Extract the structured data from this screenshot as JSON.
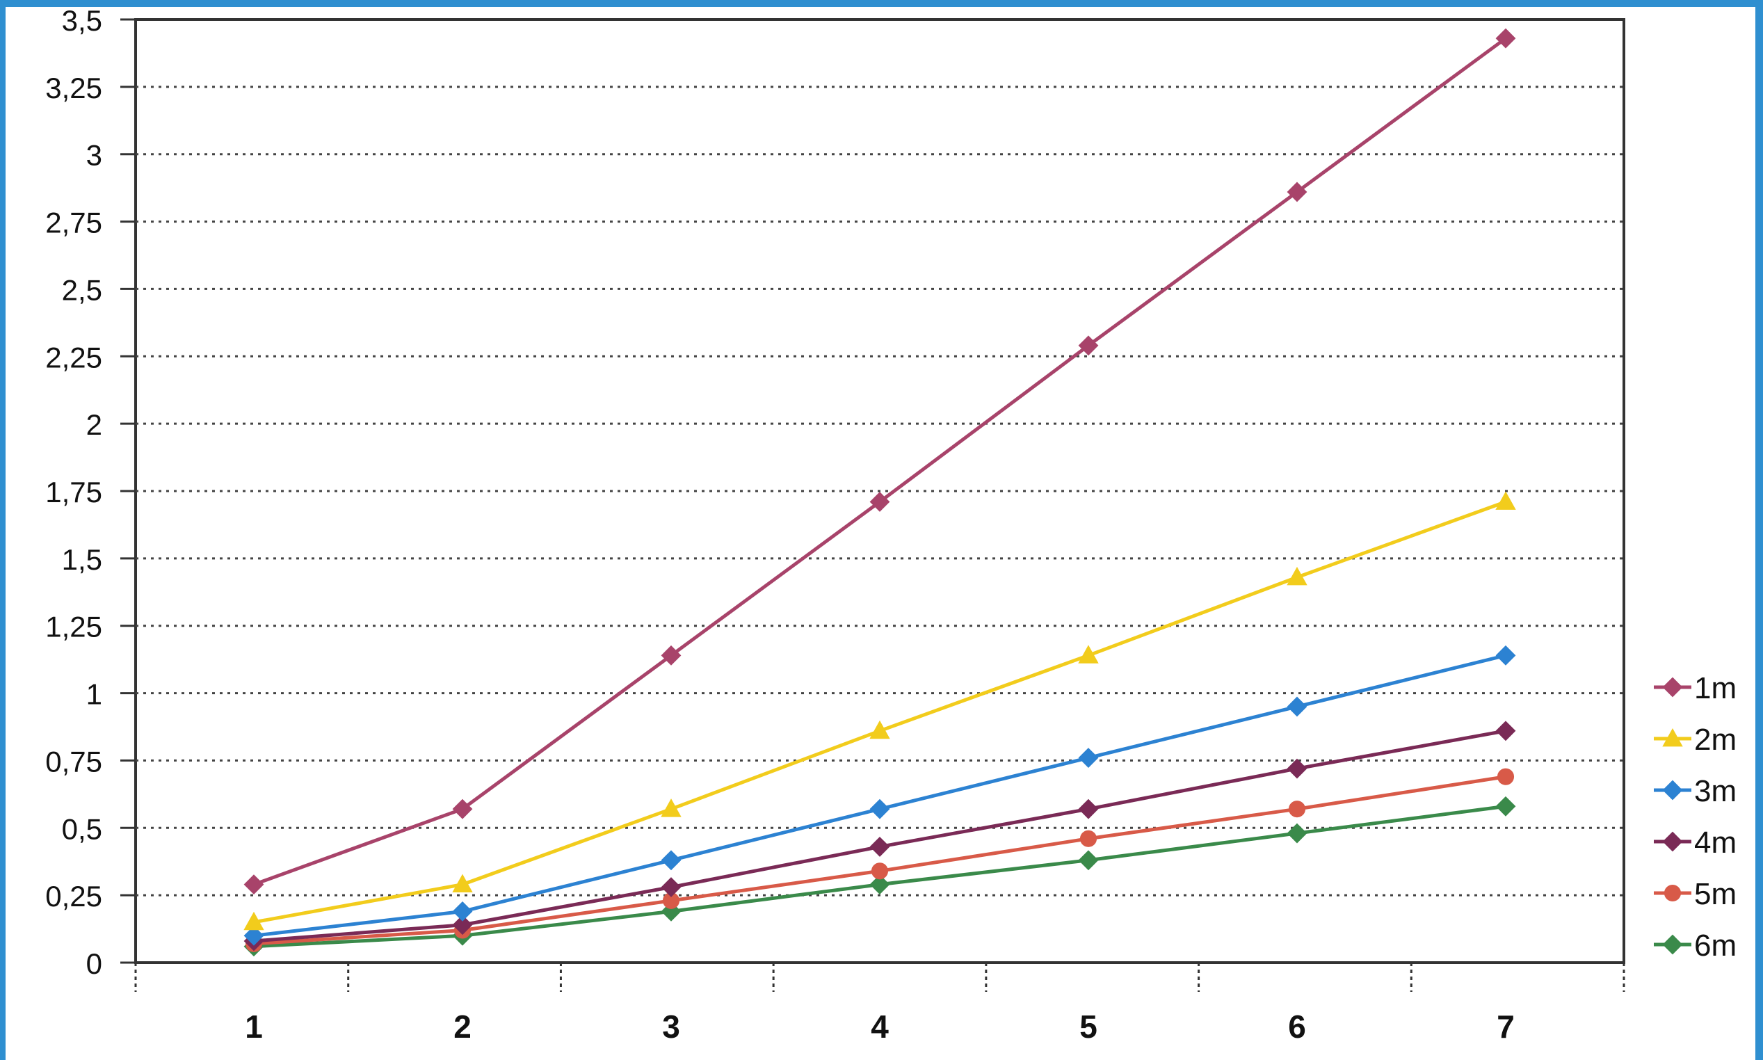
{
  "chart_data": {
    "type": "line",
    "title": "",
    "xlabel": "",
    "ylabel": "",
    "x": [
      1,
      2,
      3,
      4,
      5,
      6,
      7
    ],
    "xticks": [
      "1",
      "2",
      "3",
      "4",
      "5",
      "6",
      "7"
    ],
    "ylim": [
      0,
      3.5
    ],
    "yticks": [
      "0",
      "0,25",
      "0,5",
      "0,75",
      "1",
      "1,25",
      "1,5",
      "1,75",
      "2",
      "2,25",
      "2,5",
      "2,75",
      "3",
      "3,25",
      "3,5"
    ],
    "grid": "horizontal dotted",
    "legend_position": "right",
    "series": [
      {
        "name": "1m",
        "color": "#a8436a",
        "marker": "diamond",
        "values": [
          0.29,
          0.57,
          1.14,
          1.71,
          2.29,
          2.86,
          3.43
        ]
      },
      {
        "name": "2m",
        "color": "#f2cc1c",
        "marker": "triangle",
        "values": [
          0.15,
          0.29,
          0.57,
          0.86,
          1.14,
          1.43,
          1.71
        ]
      },
      {
        "name": "3m",
        "color": "#2c82d2",
        "marker": "diamond",
        "values": [
          0.1,
          0.19,
          0.38,
          0.57,
          0.76,
          0.95,
          1.14
        ]
      },
      {
        "name": "4m",
        "color": "#7a2a56",
        "marker": "diamond",
        "values": [
          0.08,
          0.14,
          0.28,
          0.43,
          0.57,
          0.72,
          0.86
        ]
      },
      {
        "name": "5m",
        "color": "#d85a48",
        "marker": "circle",
        "values": [
          0.07,
          0.12,
          0.23,
          0.34,
          0.46,
          0.57,
          0.69
        ]
      },
      {
        "name": "6m",
        "color": "#3a8a4a",
        "marker": "diamond",
        "values": [
          0.06,
          0.1,
          0.19,
          0.29,
          0.38,
          0.48,
          0.58
        ]
      }
    ]
  }
}
